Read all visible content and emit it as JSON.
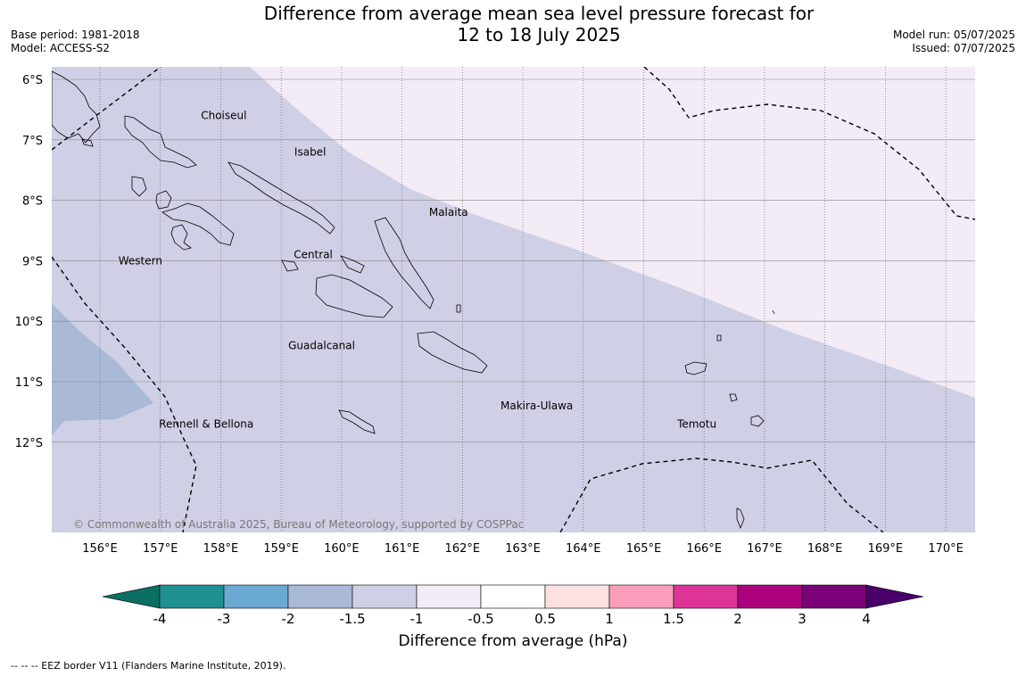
{
  "title_line1": "Difference from average mean sea level pressure forecast for",
  "title_line2": "12 to 18 July 2025",
  "base_period": "Base period: 1981-2018",
  "model": "Model: ACCESS-S2",
  "model_run": "Model run: 05/07/2025",
  "issued": "Issued: 07/07/2025",
  "copyright": "© Commonwealth of Australia 2025, Bureau of Meteorology, supported by COSPPac",
  "footnote": "--  --  -- EEZ border V11 (Flanders Marine Institute, 2019).",
  "longitude_labels": [
    "156°E",
    "157°E",
    "158°E",
    "159°E",
    "160°E",
    "161°E",
    "162°E",
    "163°E",
    "164°E",
    "165°E",
    "166°E",
    "167°E",
    "168°E",
    "169°E",
    "170°E"
  ],
  "latitude_labels": [
    "6°S",
    "7°S",
    "8°S",
    "9°S",
    "10°S",
    "11°S",
    "12°S"
  ],
  "region_labels": [
    {
      "name": "Choiseul",
      "lon": 158.05,
      "lat": -6.6
    },
    {
      "name": "Isabel",
      "lon": 159.48,
      "lat": -7.2
    },
    {
      "name": "Malaita",
      "lon": 161.77,
      "lat": -8.2
    },
    {
      "name": "Western",
      "lon": 156.67,
      "lat": -9.0
    },
    {
      "name": "Central",
      "lon": 159.53,
      "lat": -8.9
    },
    {
      "name": "Guadalcanal",
      "lon": 159.67,
      "lat": -10.4
    },
    {
      "name": "Makira-Ulawa",
      "lon": 163.23,
      "lat": -11.4
    },
    {
      "name": "Rennell & Bellona",
      "lon": 157.76,
      "lat": -11.7
    },
    {
      "name": "Temotu",
      "lon": 165.88,
      "lat": -11.7
    }
  ],
  "legend": {
    "title": "Difference from average (hPa)",
    "bins": [
      {
        "from": -4,
        "to": -3,
        "color": "#1f9091"
      },
      {
        "from": -3,
        "to": -2,
        "color": "#6aaad2"
      },
      {
        "from": -2,
        "to": -1.5,
        "color": "#a9b9d6"
      },
      {
        "from": -1.5,
        "to": -1,
        "color": "#cfd0e5"
      },
      {
        "from": -1,
        "to": -0.5,
        "color": "#f3ebf5"
      },
      {
        "from": -0.5,
        "to": 0.5,
        "color": "#ffffff"
      },
      {
        "from": 0.5,
        "to": 1,
        "color": "#fde0e0"
      },
      {
        "from": 1,
        "to": 1.5,
        "color": "#f99fbc"
      },
      {
        "from": 1.5,
        "to": 2,
        "color": "#dd3497"
      },
      {
        "from": 2,
        "to": 3,
        "color": "#ae017e"
      },
      {
        "from": 3,
        "to": 4,
        "color": "#7a0177"
      }
    ],
    "under_color": "#0b6e62",
    "over_color": "#49006a",
    "tick_labels": [
      "-4",
      "-3",
      "-2",
      "-1.5",
      "-1",
      "-0.5",
      "0.5",
      "1",
      "1.5",
      "2",
      "3",
      "4"
    ]
  }
}
